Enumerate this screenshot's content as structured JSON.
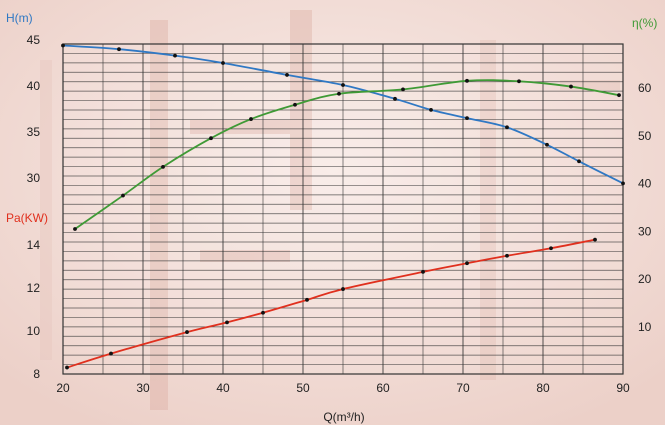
{
  "chart_data": {
    "type": "line",
    "xlabel": "Q(m³/h)",
    "x_ticks": [
      "20",
      "30",
      "40",
      "50",
      "60",
      "70",
      "80",
      "90"
    ],
    "xlim": [
      20,
      90
    ],
    "axes": {
      "head": {
        "label": "H(m)",
        "ticks": [
          "30",
          "35",
          "40",
          "45"
        ],
        "ylim": [
          25,
          46
        ],
        "color": "#2f78c4"
      },
      "power": {
        "label": "Pa(KW)",
        "ticks": [
          "8",
          "10",
          "12",
          "14"
        ],
        "ylim": [
          8,
          15
        ],
        "color": "#e0301e"
      },
      "efficiency": {
        "label": "η(%)",
        "ticks": [
          "10",
          "20",
          "30",
          "40",
          "50",
          "60"
        ],
        "ylim": [
          0,
          70
        ],
        "color": "#3f9a36"
      }
    },
    "series": [
      {
        "axis": "head",
        "color": "#2f78c4",
        "x": [
          20,
          27,
          34,
          40,
          48,
          55,
          61.5,
          66,
          70.5,
          75.5,
          80.5,
          84.5,
          90
        ],
        "y": [
          44.4,
          44.0,
          43.3,
          42.5,
          41.2,
          40.1,
          38.6,
          37.4,
          36.5,
          35.5,
          33.6,
          31.8,
          29.4
        ]
      },
      {
        "axis": "efficiency",
        "color": "#3f9a36",
        "x": [
          21.5,
          27.5,
          32.5,
          38.5,
          43.5,
          49,
          54.5,
          62.5,
          70.5,
          77,
          83.5,
          89.5
        ],
        "y": [
          30.5,
          37.5,
          43.5,
          49.5,
          53.5,
          56.5,
          58.8,
          59.7,
          61.5,
          61.4,
          60.3,
          58.5
        ]
      },
      {
        "axis": "power",
        "color": "#e0301e",
        "x": [
          20.5,
          26,
          35.5,
          40.5,
          45,
          50.5,
          55,
          65,
          70.5,
          75.5,
          81,
          86.5
        ],
        "y": [
          8.3,
          8.95,
          9.95,
          10.4,
          10.85,
          11.45,
          11.95,
          12.75,
          13.15,
          13.5,
          13.85,
          14.25
        ]
      }
    ],
    "grid": true,
    "legend": "none"
  }
}
